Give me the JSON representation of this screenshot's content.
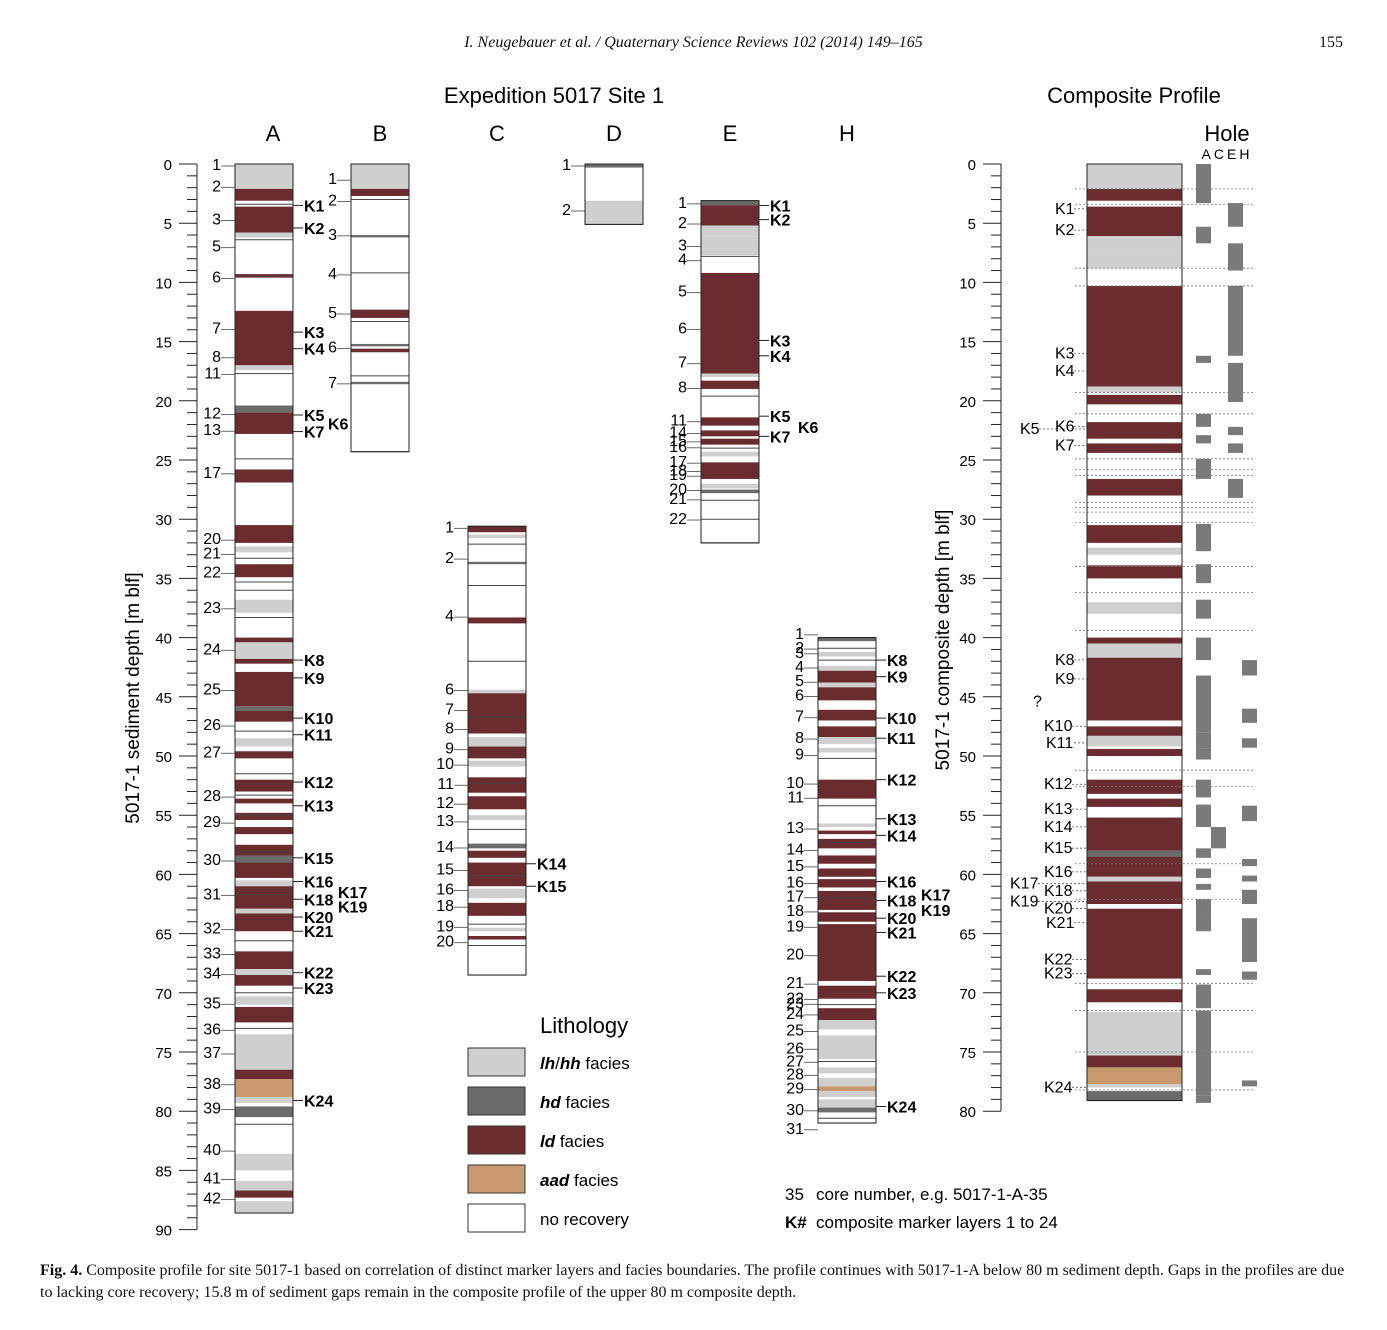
{
  "header": {
    "journal": "I. Neugebauer et al. / Quaternary Science Reviews 102 (2014) 149–165",
    "page": "155"
  },
  "titles": {
    "expedition": "Expedition 5017 Site 1",
    "composite": "Composite Profile"
  },
  "axis_labels": {
    "sediment": "5017-1 sediment depth [m blf]",
    "composite": "5017-1 composite depth [m blf]",
    "hole_title": "Hole",
    "hole_cols": "ACEH"
  },
  "depth_ticks_left": [
    "0",
    "5",
    "10",
    "15",
    "20",
    "25",
    "30",
    "35",
    "40",
    "45",
    "50",
    "55",
    "60",
    "65",
    "70",
    "75",
    "80",
    "85",
    "90"
  ],
  "depth_ticks_comp": [
    "0",
    "5",
    "10",
    "15",
    "20",
    "25",
    "30",
    "35",
    "40",
    "45",
    "50",
    "55",
    "60",
    "65",
    "70",
    "75",
    "80"
  ],
  "colors": {
    "lh": "#cfcfcf",
    "hd": "#6b6b6b",
    "ld": "#6b2c30",
    "aad": "#c99a6e",
    "none": "#ffffff"
  },
  "columns": [
    {
      "name": "A",
      "core_labels": [
        "1",
        "2",
        "3",
        "5",
        "6",
        "7",
        "8",
        "11",
        "12",
        "13",
        "17",
        "20",
        "21",
        "22",
        "23",
        "24",
        "25",
        "26",
        "27",
        "28",
        "29",
        "30",
        "31",
        "32",
        "33",
        "34",
        "35",
        "36",
        "37",
        "38",
        "39",
        "40",
        "41",
        "42"
      ],
      "markers": [
        "K1",
        "K2",
        "K3",
        "K4",
        "K5",
        "K6",
        "K7",
        "K8",
        "K9",
        "K10",
        "K11",
        "K12",
        "K13",
        "K15",
        "K16",
        "K17",
        "K18",
        "K19",
        "K20",
        "K21",
        "K22",
        "K23",
        "K24"
      ]
    },
    {
      "name": "B",
      "core_labels": [
        "1",
        "2",
        "3",
        "4",
        "5",
        "6",
        "7"
      ],
      "markers": []
    },
    {
      "name": "C",
      "core_labels": [
        "1",
        "2",
        "4",
        "6",
        "7",
        "8",
        "9",
        "10",
        "11",
        "12",
        "13",
        "14",
        "15",
        "16",
        "18",
        "19",
        "20"
      ],
      "markers": [
        "K14",
        "K15"
      ]
    },
    {
      "name": "D",
      "core_labels": [
        "1",
        "2"
      ],
      "markers": []
    },
    {
      "name": "E",
      "core_labels": [
        "1",
        "2",
        "3",
        "4",
        "5",
        "6",
        "7",
        "8",
        "11",
        "14",
        "15",
        "16",
        "17",
        "18",
        "19",
        "20",
        "21",
        "22"
      ],
      "markers": [
        "K1",
        "K2",
        "K3",
        "K4",
        "K5",
        "K6",
        "K7"
      ]
    },
    {
      "name": "H",
      "core_labels": [
        "1",
        "2",
        "3",
        "4",
        "5",
        "6",
        "7",
        "8",
        "9",
        "10",
        "11",
        "13",
        "14",
        "15",
        "16",
        "17",
        "18",
        "19",
        "20",
        "21",
        "22",
        "23",
        "24",
        "25",
        "26",
        "27",
        "28",
        "29",
        "30",
        "31"
      ],
      "markers": [
        "K8",
        "K9",
        "K10",
        "K11",
        "K12",
        "K13",
        "K14",
        "K16",
        "K17",
        "K18",
        "K19",
        "K20",
        "K21",
        "K22",
        "K23",
        "K24"
      ]
    }
  ],
  "composite_markers": [
    "K1",
    "K2",
    "K3",
    "K4",
    "K5",
    "K6",
    "K7",
    "K8",
    "K9",
    "?",
    "K10",
    "K11",
    "K12",
    "K13",
    "K14",
    "K15",
    "K16",
    "K17",
    "K18",
    "K19",
    "K20",
    "K21",
    "K22",
    "K23",
    "K24"
  ],
  "legend": {
    "title": "Lithology",
    "items": [
      {
        "key": "lh",
        "label_em": "lh",
        "sep": "/",
        "label_em2": "hh",
        "label": " facies"
      },
      {
        "key": "hd",
        "label_em": "hd",
        "label": " facies"
      },
      {
        "key": "ld",
        "label_em": "ld",
        "label": " facies"
      },
      {
        "key": "aad",
        "label_em": "aad",
        "label": " facies"
      },
      {
        "key": "none",
        "label": "no recovery"
      }
    ],
    "note1_num": "35",
    "note1": "core number, e.g. 5017-1-A-35",
    "note2_num": "K#",
    "note2": "composite marker layers 1 to 24"
  },
  "caption": {
    "label": "Fig. 4.",
    "text": "Composite profile for site 5017-1 based on correlation of distinct marker layers and facies boundaries. The profile continues with 5017-1-A below 80 m sediment depth. Gaps in the profiles are due to lacking core recovery; 15.8 m of sediment gaps remain in the composite profile of the upper 80 m composite depth."
  }
}
